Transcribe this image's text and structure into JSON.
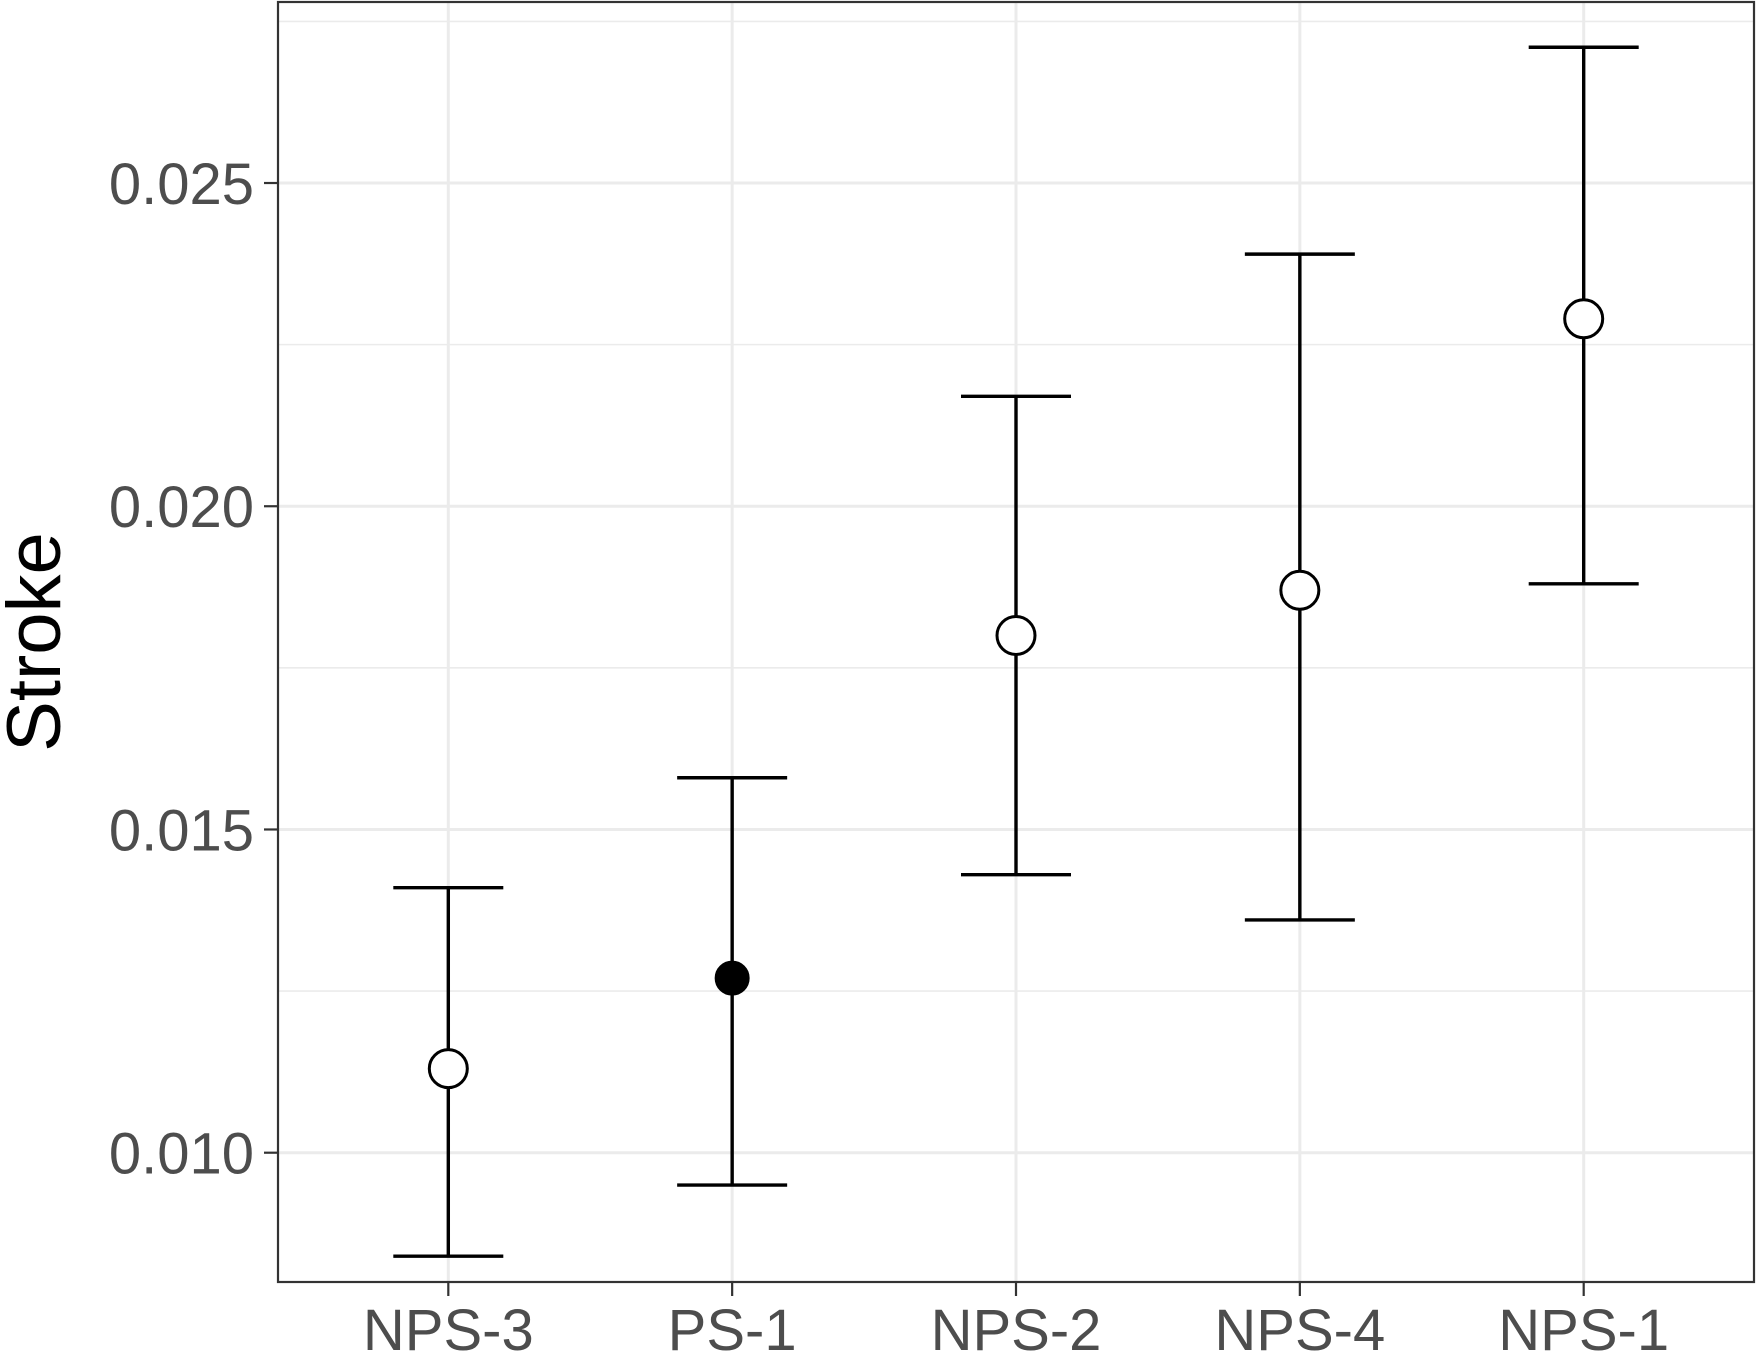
{
  "chart_data": {
    "type": "scatter",
    "ylabel": "Stroke",
    "categories": [
      "NPS-3",
      "PS-1",
      "NPS-2",
      "NPS-4",
      "NPS-1"
    ],
    "points": [
      {
        "category": "NPS-3",
        "value": 0.0113,
        "lower": 0.0084,
        "upper": 0.0141,
        "filled": false
      },
      {
        "category": "PS-1",
        "value": 0.0127,
        "lower": 0.0095,
        "upper": 0.0158,
        "filled": true
      },
      {
        "category": "NPS-2",
        "value": 0.018,
        "lower": 0.0143,
        "upper": 0.0217,
        "filled": false
      },
      {
        "category": "NPS-4",
        "value": 0.0187,
        "lower": 0.0136,
        "upper": 0.0239,
        "filled": false
      },
      {
        "category": "NPS-1",
        "value": 0.0229,
        "lower": 0.0188,
        "upper": 0.0271,
        "filled": false
      }
    ],
    "ylim": [
      0.008,
      0.0278
    ],
    "yticks": [
      {
        "value": 0.01,
        "label": "0.010"
      },
      {
        "value": 0.015,
        "label": "0.015"
      },
      {
        "value": 0.02,
        "label": "0.020"
      },
      {
        "value": 0.025,
        "label": "0.025"
      }
    ],
    "grid": true
  }
}
